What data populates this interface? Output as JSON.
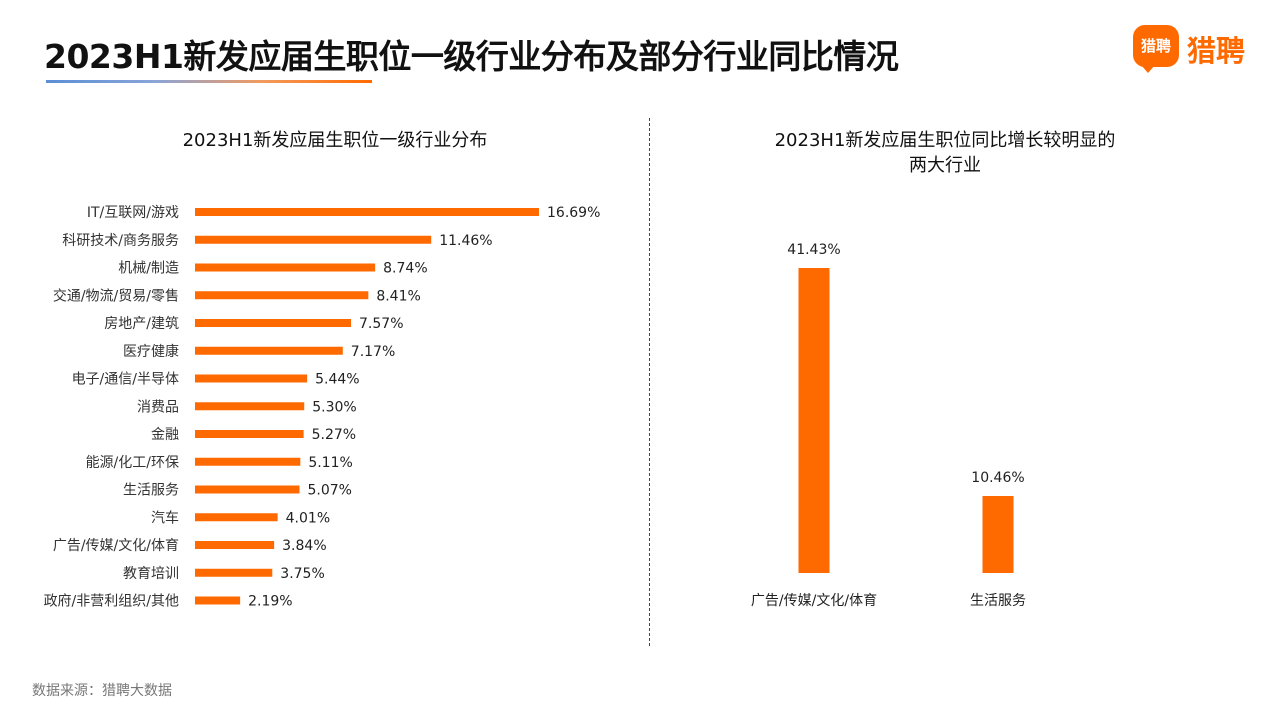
{
  "header": {
    "title": "2023H1新发应届生职位一级行业分布及部分行业同比情况",
    "logo_icon_text": "猎聘",
    "logo_text": "猎聘"
  },
  "colors": {
    "accent": "#ff6a00",
    "text": "#222222"
  },
  "chart_data": [
    {
      "type": "bar",
      "orientation": "horizontal",
      "title": "2023H1新发应届生职位一级行业分布",
      "categories": [
        "IT/互联网/游戏",
        "科研技术/商务服务",
        "机械/制造",
        "交通/物流/贸易/零售",
        "房地产/建筑",
        "医疗健康",
        "电子/通信/半导体",
        "消费品",
        "金融",
        "能源/化工/环保",
        "生活服务",
        "汽车",
        "广告/传媒/文化/体育",
        "教育培训",
        "政府/非营利组织/其他"
      ],
      "values": [
        16.69,
        11.46,
        8.74,
        8.41,
        7.57,
        7.17,
        5.44,
        5.3,
        5.27,
        5.11,
        5.07,
        4.01,
        3.84,
        3.75,
        2.19
      ],
      "labels": [
        "16.69%",
        "11.46%",
        "8.74%",
        "8.41%",
        "7.57%",
        "7.17%",
        "5.44%",
        "5.30%",
        "5.27%",
        "5.11%",
        "5.07%",
        "4.01%",
        "3.84%",
        "3.75%",
        "2.19%"
      ],
      "unit": "%",
      "xlim": [
        0,
        16.69
      ],
      "grid": false,
      "legend": "none"
    },
    {
      "type": "bar",
      "orientation": "vertical",
      "title": "2023H1新发应届生职位同比增长较明显的两大行业",
      "title_lines": [
        "2023H1新发应届生职位同比增长较明显的",
        "两大行业"
      ],
      "categories": [
        "广告/传媒/文化/体育",
        "生活服务"
      ],
      "values": [
        41.43,
        10.46
      ],
      "labels": [
        "41.43%",
        "10.46%"
      ],
      "unit": "%",
      "ylim": [
        0,
        41.43
      ],
      "grid": false,
      "legend": "none"
    }
  ],
  "footer": {
    "source": "数据来源：猎聘大数据"
  }
}
